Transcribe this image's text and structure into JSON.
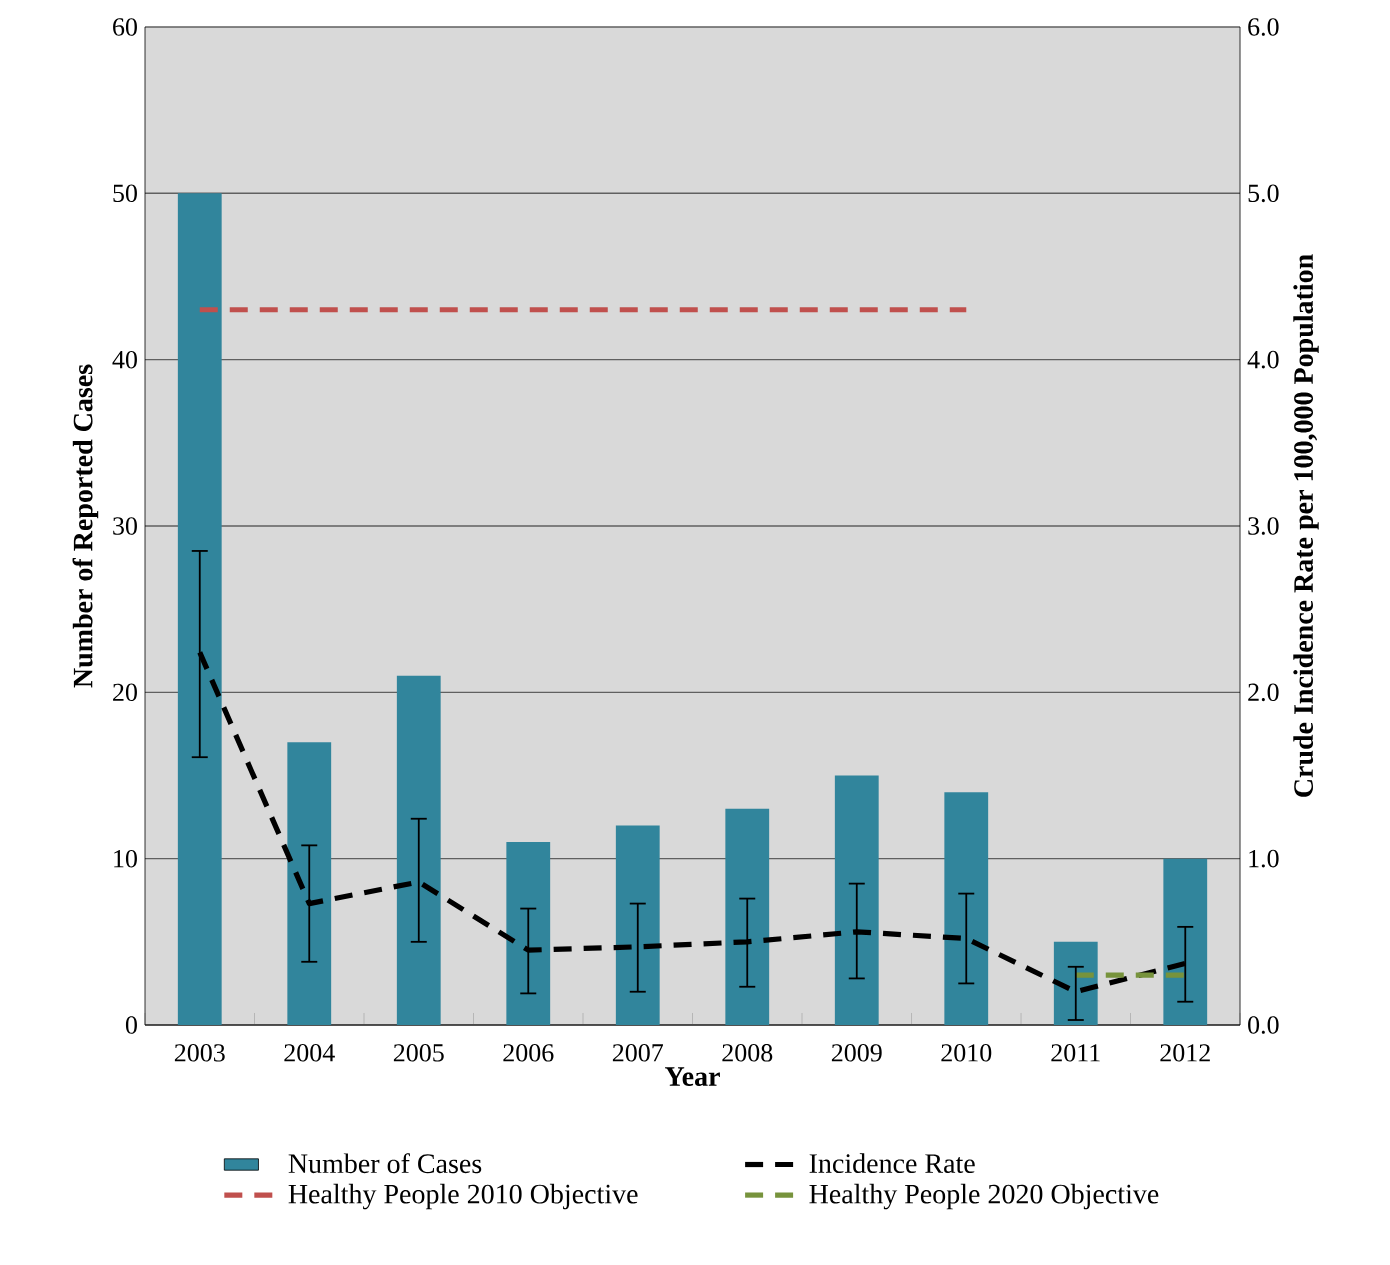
{
  "chart_data": {
    "type": "bar",
    "xlabel": "Year",
    "ylabel": "Number of Reported Cases",
    "y2label": "Crude Incidence Rate per 100,000 Population",
    "categories": [
      "2003",
      "2004",
      "2005",
      "2006",
      "2007",
      "2008",
      "2009",
      "2010",
      "2011",
      "2012"
    ],
    "series": [
      {
        "name": "Number of Cases",
        "color": "#31859c",
        "values": [
          50,
          17,
          21,
          11,
          12,
          13,
          15,
          14,
          5,
          10
        ]
      },
      {
        "name": "Incidence Rate",
        "type": "line",
        "axis": "y2",
        "color": "#000000",
        "line_style": "dashed",
        "values": [
          2.24,
          0.73,
          0.86,
          0.45,
          0.47,
          0.5,
          0.56,
          0.52,
          0.2,
          0.37
        ],
        "errors": [
          [
            1.61,
            2.85
          ],
          [
            0.38,
            1.08
          ],
          [
            0.5,
            1.24
          ],
          [
            0.19,
            0.7
          ],
          [
            0.2,
            0.73
          ],
          [
            0.23,
            0.76
          ],
          [
            0.28,
            0.85
          ],
          [
            0.25,
            0.79
          ],
          [
            0.03,
            0.35
          ],
          [
            0.14,
            0.59
          ]
        ]
      },
      {
        "name": "Healthy People 2010 Objective",
        "type": "line",
        "axis": "y2",
        "color": "#c0504d",
        "line_style": "dashed",
        "values": [
          4.3,
          4.3,
          4.3,
          4.3,
          4.3,
          4.3,
          4.3,
          4.3,
          null,
          null
        ]
      },
      {
        "name": "Healthy People 2020 Objective",
        "type": "line",
        "axis": "y2",
        "color": "#77933c",
        "line_style": "dashed",
        "values": [
          null,
          null,
          null,
          null,
          null,
          null,
          null,
          null,
          0.3,
          0.3
        ]
      }
    ],
    "ylim": [
      0,
      60
    ],
    "yticks": [
      0,
      10,
      20,
      30,
      40,
      50,
      60
    ],
    "y2lim": [
      0,
      6
    ],
    "y2ticks": [
      {
        "value": 0,
        "label": "0.0"
      },
      {
        "value": 1,
        "label": "1.0"
      },
      {
        "value": 2,
        "label": "2.0"
      },
      {
        "value": 3,
        "label": "3.0"
      },
      {
        "value": 4,
        "label": "4.0"
      },
      {
        "value": 5,
        "label": "5.0"
      },
      {
        "value": 6,
        "label": "6.0"
      }
    ],
    "grid": "y",
    "legend": "bottom"
  }
}
